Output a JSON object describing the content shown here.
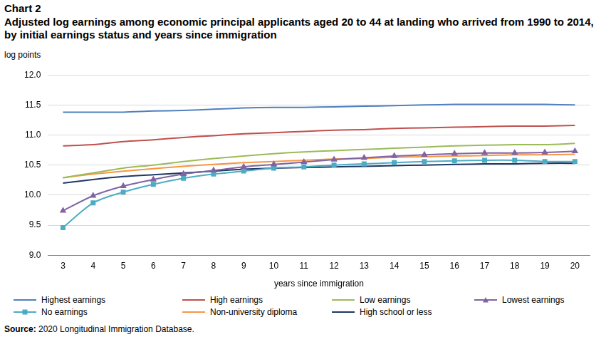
{
  "chart_data": {
    "type": "line",
    "kicker": "Chart 2",
    "title": "Adjusted log earnings among economic principal applicants aged 20 to 44 at landing who arrived from 1990 to 2014, by initial earnings status and years since immigration",
    "ylabel": "log points",
    "xlabel": "years since immigration",
    "source": "Source: 2020 Longitudinal Immigration Database.",
    "categories": [
      3,
      4,
      5,
      6,
      7,
      8,
      9,
      10,
      11,
      12,
      13,
      14,
      15,
      16,
      17,
      18,
      19,
      20
    ],
    "ylim": [
      9,
      12
    ],
    "yticks": [
      {
        "value": 9,
        "label": "9.0"
      },
      9.5,
      {
        "value": 10,
        "label": "10.0"
      },
      10.5,
      {
        "value": 11,
        "label": "11.0"
      },
      11.5,
      {
        "value": 12,
        "label": "12.0"
      }
    ],
    "grid": "y",
    "legend": "bottom",
    "series": [
      {
        "name": "Highest earnings",
        "color": "#4f81bd",
        "marker": "none",
        "values": [
          11.38,
          11.38,
          11.38,
          11.4,
          11.41,
          11.43,
          11.45,
          11.46,
          11.46,
          11.47,
          11.48,
          11.49,
          11.5,
          11.51,
          11.51,
          11.51,
          11.51,
          11.5
        ]
      },
      {
        "name": "High earnings",
        "color": "#c0504d",
        "marker": "none",
        "values": [
          10.82,
          10.84,
          10.89,
          10.92,
          10.96,
          10.99,
          11.02,
          11.04,
          11.06,
          11.08,
          11.09,
          11.11,
          11.12,
          11.13,
          11.14,
          11.15,
          11.15,
          11.16
        ]
      },
      {
        "name": "Low earnings",
        "color": "#9bbb59",
        "marker": "none",
        "values": [
          10.29,
          10.37,
          10.45,
          10.5,
          10.56,
          10.61,
          10.65,
          10.69,
          10.72,
          10.74,
          10.76,
          10.78,
          10.8,
          10.82,
          10.83,
          10.84,
          10.84,
          10.86
        ]
      },
      {
        "name": "Lowest earnings",
        "color": "#8064a2",
        "marker": "triangle",
        "values": [
          9.74,
          9.99,
          10.15,
          10.26,
          10.35,
          10.41,
          10.47,
          10.51,
          10.55,
          10.59,
          10.62,
          10.65,
          10.67,
          10.69,
          10.7,
          10.7,
          10.71,
          10.73
        ]
      },
      {
        "name": "No earnings",
        "color": "#4bacc6",
        "marker": "square",
        "values": [
          9.46,
          9.87,
          10.05,
          10.18,
          10.28,
          10.35,
          10.4,
          10.45,
          10.47,
          10.5,
          10.52,
          10.54,
          10.56,
          10.57,
          10.58,
          10.58,
          10.56,
          10.56
        ]
      },
      {
        "name": "Non-university diploma",
        "color": "#f79646",
        "marker": "none",
        "values": [
          10.29,
          10.35,
          10.4,
          10.44,
          10.48,
          10.51,
          10.54,
          10.56,
          10.58,
          10.6,
          10.61,
          10.63,
          10.64,
          10.65,
          10.66,
          10.67,
          10.67,
          10.68
        ]
      },
      {
        "name": "High school or less",
        "color": "#1f3864",
        "marker": "none",
        "values": [
          10.2,
          10.26,
          10.31,
          10.34,
          10.37,
          10.4,
          10.43,
          10.45,
          10.46,
          10.47,
          10.48,
          10.49,
          10.5,
          10.51,
          10.52,
          10.52,
          10.53,
          10.53
        ]
      }
    ]
  }
}
